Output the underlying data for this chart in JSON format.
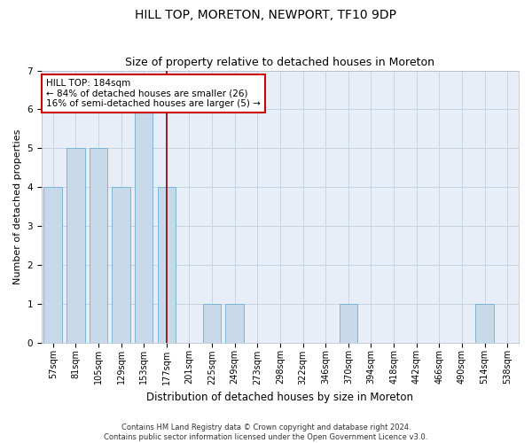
{
  "title1": "HILL TOP, MORETON, NEWPORT, TF10 9DP",
  "title2": "Size of property relative to detached houses in Moreton",
  "xlabel": "Distribution of detached houses by size in Moreton",
  "ylabel": "Number of detached properties",
  "categories": [
    "57sqm",
    "81sqm",
    "105sqm",
    "129sqm",
    "153sqm",
    "177sqm",
    "201sqm",
    "225sqm",
    "249sqm",
    "273sqm",
    "298sqm",
    "322sqm",
    "346sqm",
    "370sqm",
    "394sqm",
    "418sqm",
    "442sqm",
    "466sqm",
    "490sqm",
    "514sqm",
    "538sqm"
  ],
  "values": [
    4,
    5,
    5,
    4,
    6,
    4,
    0,
    1,
    1,
    0,
    0,
    0,
    0,
    1,
    0,
    0,
    0,
    0,
    0,
    1,
    0
  ],
  "bar_color": "#c8daea",
  "bar_edge_color": "#6baed6",
  "vline_x": 5,
  "vline_color": "#8b0000",
  "annotation_text": "HILL TOP: 184sqm\n← 84% of detached houses are smaller (26)\n16% of semi-detached houses are larger (5) →",
  "annotation_box_color": "white",
  "annotation_box_edge_color": "#cc0000",
  "ylim": [
    0,
    7
  ],
  "yticks": [
    0,
    1,
    2,
    3,
    4,
    5,
    6,
    7
  ],
  "grid_color": "#c8d4e4",
  "background_color": "#e8eef8",
  "footer": "Contains HM Land Registry data © Crown copyright and database right 2024.\nContains public sector information licensed under the Open Government Licence v3.0.",
  "title1_fontsize": 10,
  "title2_fontsize": 9,
  "tick_fontsize": 7,
  "ylabel_fontsize": 8,
  "xlabel_fontsize": 8.5,
  "annotation_fontsize": 7.5,
  "footer_fontsize": 6
}
